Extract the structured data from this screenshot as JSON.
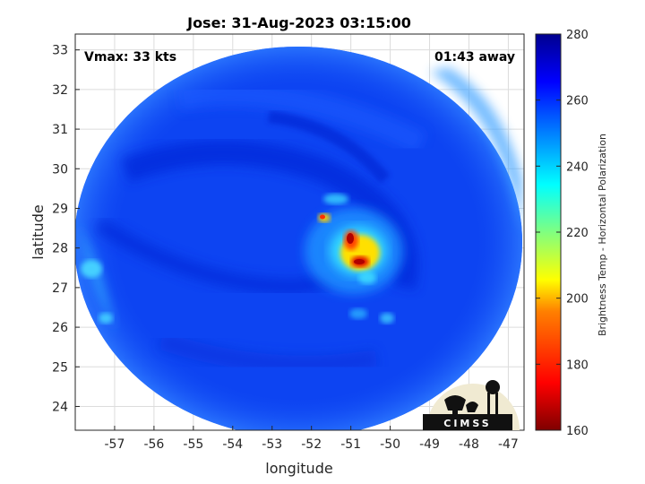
{
  "title": "Jose: 31-Aug-2023 03:15:00",
  "vmax": "Vmax: 33 kts",
  "time_away": "01:43 away",
  "xlabel": "longitude",
  "ylabel": "latitude",
  "colorbar_label": "Brightness Temp - Horizontal Polarization",
  "logo_text": "CIMSS",
  "chart_data": {
    "type": "heatmap",
    "title": "Jose: 31-Aug-2023 03:15:00",
    "xlabel": "longitude",
    "ylabel": "latitude",
    "xlim": [
      -58,
      -46.6
    ],
    "ylim": [
      23.4,
      33.4
    ],
    "x_ticks": [
      -57,
      -56,
      -55,
      -54,
      -53,
      -52,
      -51,
      -50,
      -49,
      -48,
      -47
    ],
    "y_ticks": [
      24,
      25,
      26,
      27,
      28,
      29,
      30,
      31,
      32,
      33
    ],
    "grid": true,
    "colorbar": {
      "label": "Brightness Temp - Horizontal Polarization",
      "min": 160,
      "max": 280,
      "ticks": [
        160,
        180,
        200,
        220,
        240,
        260,
        280
      ],
      "colormap": "jet",
      "colors": [
        "#7f0000",
        "#ff0000",
        "#ff8000",
        "#ffff00",
        "#80ff80",
        "#00ffff",
        "#0080ff",
        "#0000ff",
        "#00008f"
      ]
    },
    "swath_center": [
      -52.3,
      28.3
    ],
    "storm_center": [
      -51.0,
      28.0
    ],
    "annotations": [
      "Vmax: 33 kts",
      "01:43 away"
    ]
  }
}
